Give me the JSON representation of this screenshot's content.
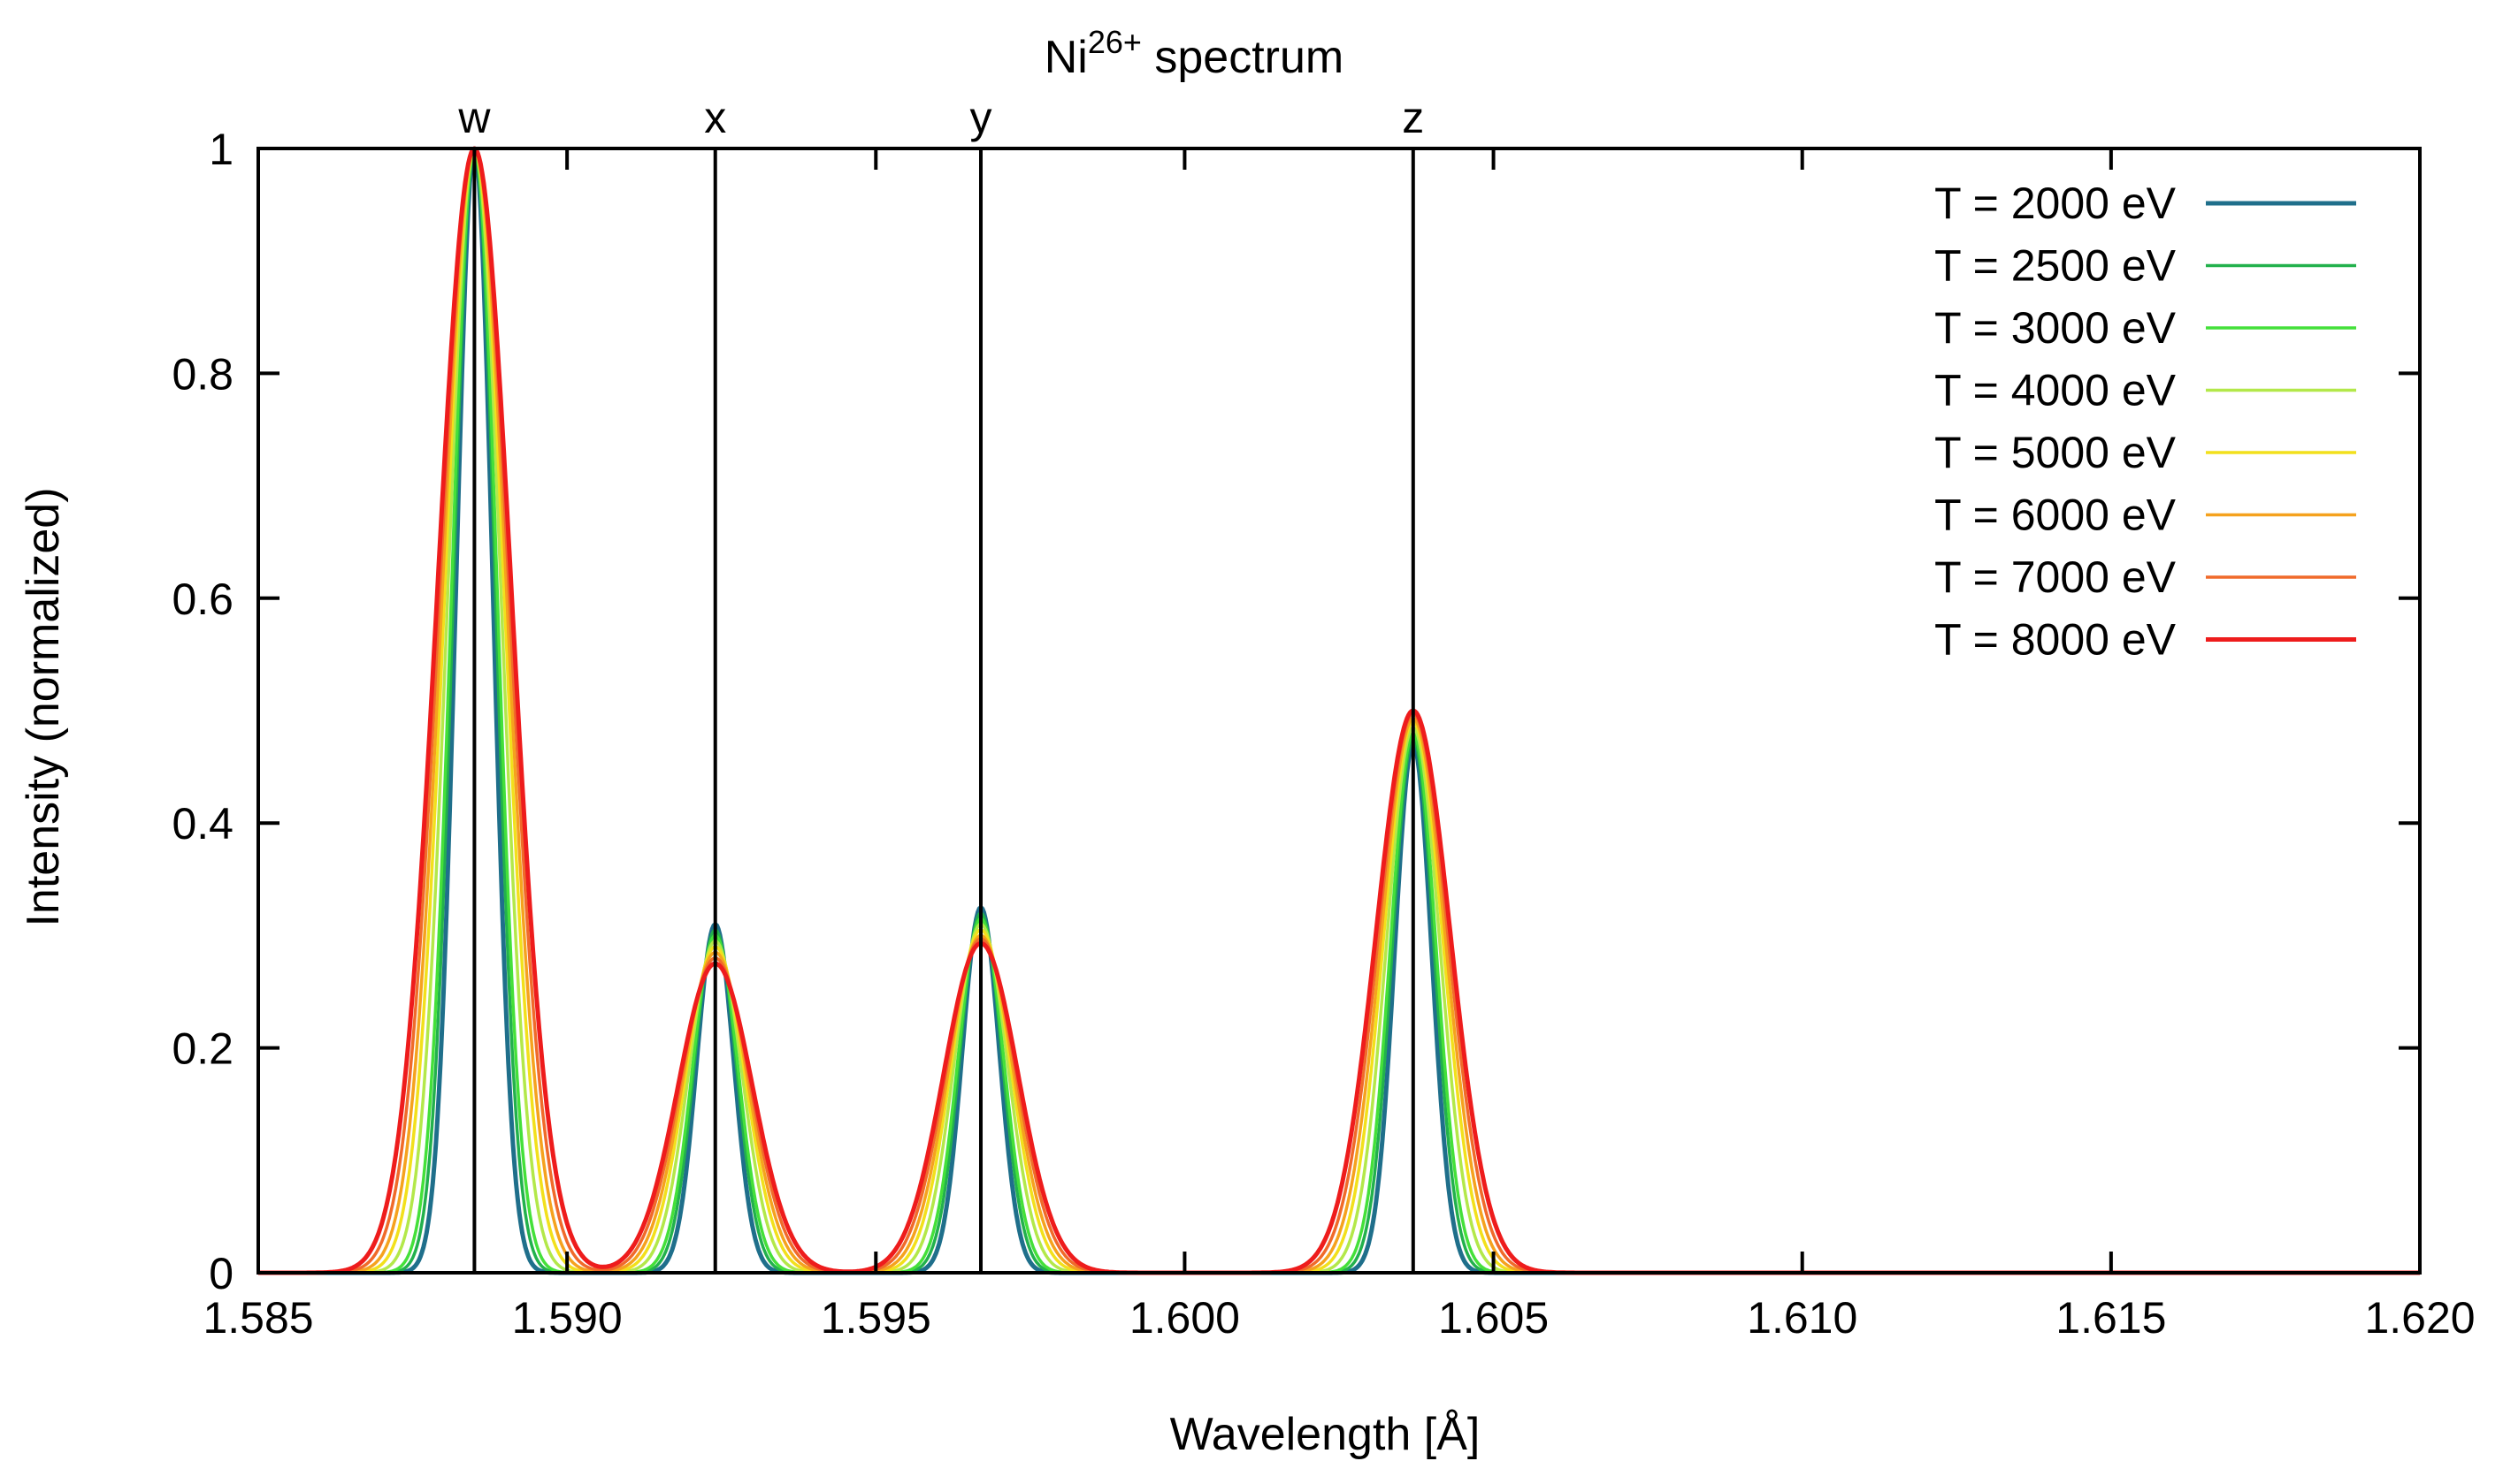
{
  "chart_data": {
    "type": "line",
    "title": "Ni",
    "title_superscript": "26+",
    "title_suffix": " spectrum",
    "xlabel": "Wavelength [Å]",
    "ylabel": "Intensity (normalized)",
    "xlim": [
      1.585,
      1.62
    ],
    "ylim": [
      0,
      1
    ],
    "x_ticks": [
      1.585,
      1.59,
      1.595,
      1.6,
      1.605,
      1.61,
      1.615,
      1.62
    ],
    "x_tick_labels": [
      "1.585",
      "1.590",
      "1.595",
      "1.600",
      "1.605",
      "1.610",
      "1.615",
      "1.620"
    ],
    "y_ticks": [
      0,
      0.2,
      0.4,
      0.6,
      0.8,
      1
    ],
    "y_tick_labels": [
      "0",
      "0.2",
      "0.4",
      "0.6",
      "0.8",
      "1"
    ],
    "grid": false,
    "legend_position": "top-right",
    "lines": [
      {
        "label": "w",
        "wavelength": 1.5885
      },
      {
        "label": "x",
        "wavelength": 1.5924
      },
      {
        "label": "y",
        "wavelength": 1.5967
      },
      {
        "label": "z",
        "wavelength": 1.6037
      }
    ],
    "peaks": [
      {
        "line": "w",
        "center": 1.5885,
        "heights": [
          1.0,
          1.0,
          1.0,
          1.0,
          1.0,
          1.0,
          1.0,
          1.0
        ]
      },
      {
        "line": "x",
        "center": 1.5924,
        "heights": [
          0.31,
          0.305,
          0.3,
          0.295,
          0.29,
          0.285,
          0.28,
          0.275
        ]
      },
      {
        "line": "y",
        "center": 1.5967,
        "heights": [
          0.325,
          0.32,
          0.315,
          0.31,
          0.305,
          0.3,
          0.297,
          0.293
        ]
      },
      {
        "line": "z",
        "center": 1.6037,
        "heights": [
          0.47,
          0.475,
          0.48,
          0.485,
          0.49,
          0.493,
          0.497,
          0.5
        ]
      }
    ],
    "series": [
      {
        "name": "T = 2000 eV",
        "temperature_eV": 2000,
        "sigma": 0.0003,
        "color": "#1f6f8b"
      },
      {
        "name": "T = 2500 eV",
        "temperature_eV": 2500,
        "sigma": 0.00034,
        "color": "#22b14c"
      },
      {
        "name": "T = 3000 eV",
        "temperature_eV": 3000,
        "sigma": 0.00037,
        "color": "#44e03a"
      },
      {
        "name": "T = 4000 eV",
        "temperature_eV": 4000,
        "sigma": 0.00043,
        "color": "#b3e84a"
      },
      {
        "name": "T = 5000 eV",
        "temperature_eV": 5000,
        "sigma": 0.00048,
        "color": "#f2e01c"
      },
      {
        "name": "T = 6000 eV",
        "temperature_eV": 6000,
        "sigma": 0.00052,
        "color": "#f5a21e"
      },
      {
        "name": "T = 7000 eV",
        "temperature_eV": 7000,
        "sigma": 0.00056,
        "color": "#f06a2a"
      },
      {
        "name": "T = 8000 eV",
        "temperature_eV": 8000,
        "sigma": 0.0006,
        "color": "#ee1c1c"
      }
    ]
  }
}
